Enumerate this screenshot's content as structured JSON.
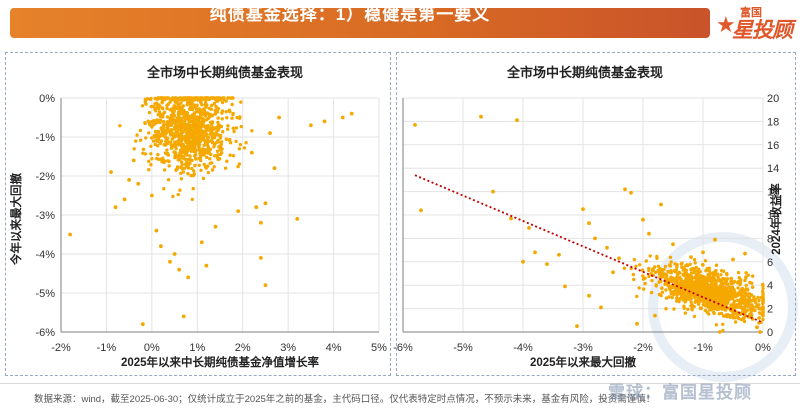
{
  "header": {
    "title": "纯债基金选择：1）稳健是第一要义",
    "logo_small": "富国",
    "logo_big": "星投顾"
  },
  "colors": {
    "accent": "#e6822a",
    "point": "#f5a800",
    "trend": "#c00000"
  },
  "chart_data": [
    {
      "type": "scatter",
      "title": "全市场中长期纯债基金表现",
      "xlabel": "2025年以来中长期纯债基金净值增长率",
      "ylabel": "今年以来最大回撤",
      "xlim": [
        -2,
        5
      ],
      "ylim": [
        -6,
        0
      ],
      "x_ticks": [
        "-2%",
        "-1%",
        "0%",
        "1%",
        "2%",
        "3%",
        "4%",
        "5%"
      ],
      "y_ticks": [
        "0%",
        "-1%",
        "-2%",
        "-3%",
        "-4%",
        "-5%",
        "-6%"
      ],
      "cluster": {
        "x_center": 0.8,
        "y_center": -0.8,
        "count": 900
      },
      "points": [
        {
          "x": -1.8,
          "y": -3.5
        },
        {
          "x": -0.9,
          "y": -1.9
        },
        {
          "x": -0.8,
          "y": -2.8
        },
        {
          "x": -0.6,
          "y": -2.6
        },
        {
          "x": -0.3,
          "y": -2.2
        },
        {
          "x": -0.2,
          "y": -5.8
        },
        {
          "x": 0.0,
          "y": -2.5
        },
        {
          "x": 0.1,
          "y": -3.4
        },
        {
          "x": 0.2,
          "y": -3.8
        },
        {
          "x": 0.5,
          "y": -4.0
        },
        {
          "x": 0.4,
          "y": -4.2
        },
        {
          "x": 0.6,
          "y": -4.4
        },
        {
          "x": 0.8,
          "y": -4.6
        },
        {
          "x": 0.7,
          "y": -5.6
        },
        {
          "x": 1.2,
          "y": -4.3
        },
        {
          "x": 1.1,
          "y": -3.7
        },
        {
          "x": 1.4,
          "y": -3.3
        },
        {
          "x": 1.9,
          "y": -2.9
        },
        {
          "x": 2.3,
          "y": -2.8
        },
        {
          "x": 2.4,
          "y": -3.2
        },
        {
          "x": 2.5,
          "y": -2.7
        },
        {
          "x": 2.4,
          "y": -4.1
        },
        {
          "x": 2.5,
          "y": -4.8
        },
        {
          "x": 2.7,
          "y": -1.8
        },
        {
          "x": 2.2,
          "y": -1.4
        },
        {
          "x": 2.6,
          "y": -0.9
        },
        {
          "x": 3.2,
          "y": -3.1
        },
        {
          "x": 3.5,
          "y": -0.7
        },
        {
          "x": 3.8,
          "y": -0.6
        },
        {
          "x": 4.2,
          "y": -0.5
        },
        {
          "x": 4.4,
          "y": -0.4
        },
        {
          "x": 2.8,
          "y": -0.5
        },
        {
          "x": -0.4,
          "y": -1.6
        },
        {
          "x": -0.5,
          "y": -2.1
        }
      ]
    },
    {
      "type": "scatter",
      "title": "全市场中长期纯债基金表现",
      "xlabel": "2025年以来最大回撤",
      "ylabel": "2024年收益率",
      "xlim": [
        -6,
        0
      ],
      "ylim": [
        0,
        20
      ],
      "x_ticks": [
        "-6%",
        "-5%",
        "-4%",
        "-3%",
        "-2%",
        "-1%",
        "0%"
      ],
      "y_ticks": [
        "0",
        "2",
        "4",
        "6",
        "8",
        "10",
        "12",
        "14",
        "16",
        "18",
        "20"
      ],
      "trendline": {
        "x": [
          -5.8,
          0
        ],
        "y": [
          13.4,
          0.8
        ]
      },
      "cluster": {
        "x_center": -0.9,
        "y_center": 3.4,
        "count": 1100
      },
      "points": [
        {
          "x": -5.8,
          "y": 17.7
        },
        {
          "x": -5.7,
          "y": 10.4
        },
        {
          "x": -4.7,
          "y": 18.4
        },
        {
          "x": -4.1,
          "y": 18.1
        },
        {
          "x": -4.5,
          "y": 12.0
        },
        {
          "x": -4.2,
          "y": 9.7
        },
        {
          "x": -3.9,
          "y": 8.9
        },
        {
          "x": -3.8,
          "y": 6.8
        },
        {
          "x": -3.6,
          "y": 5.8
        },
        {
          "x": -3.3,
          "y": 3.9
        },
        {
          "x": -3.0,
          "y": 10.5
        },
        {
          "x": -2.9,
          "y": 9.3
        },
        {
          "x": -2.8,
          "y": 8.0
        },
        {
          "x": -2.6,
          "y": 7.2
        },
        {
          "x": -2.4,
          "y": 6.3
        },
        {
          "x": -2.3,
          "y": 12.2
        },
        {
          "x": -2.2,
          "y": 11.9
        },
        {
          "x": -2.5,
          "y": 5.1
        },
        {
          "x": -2.9,
          "y": 3.1
        },
        {
          "x": -2.7,
          "y": 2.1
        },
        {
          "x": -3.1,
          "y": 0.5
        },
        {
          "x": -2.0,
          "y": 9.6
        },
        {
          "x": -1.9,
          "y": 8.4
        },
        {
          "x": -1.7,
          "y": 10.9
        },
        {
          "x": -1.5,
          "y": 7.5
        },
        {
          "x": -1.2,
          "y": 6.4
        },
        {
          "x": -1.0,
          "y": 6.8
        },
        {
          "x": -0.8,
          "y": 7.9
        },
        {
          "x": -0.5,
          "y": 6.2
        },
        {
          "x": -0.3,
          "y": 6.7
        },
        {
          "x": -0.2,
          "y": 1.3
        },
        {
          "x": -0.1,
          "y": 0.4
        },
        {
          "x": -0.05,
          "y": 0.0
        },
        {
          "x": -2.1,
          "y": 0.7
        },
        {
          "x": -1.8,
          "y": 1.4
        },
        {
          "x": -3.4,
          "y": 6.6
        },
        {
          "x": -4.0,
          "y": 6.0
        }
      ]
    }
  ],
  "footer": {
    "note": "数据来源：wind，截至2025-06-30；仅统计成立于2025年之前的基金，主代码口径。仅代表特定时点情况，不预示未来，基金有风险，投资需谨慎！",
    "watermark": "雪球：富国星投顾"
  }
}
